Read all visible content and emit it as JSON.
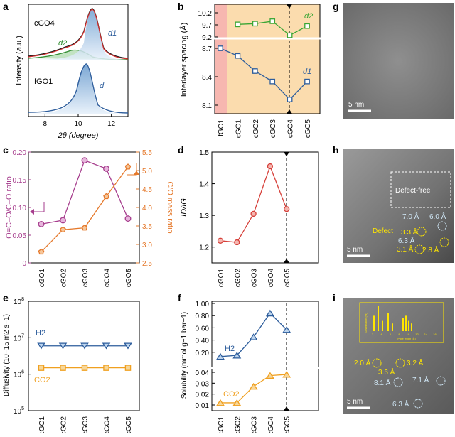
{
  "chart_data": [
    {
      "id": "a",
      "type": "line",
      "panel_label": "a",
      "xlabel": "2θ (degree)",
      "ylabel": "Intensity (a.u.)",
      "xlim": [
        7,
        13
      ],
      "xticks": [
        "8",
        "10",
        "12"
      ],
      "samples": [
        {
          "name": "cGO4",
          "peaks": [
            {
              "label": "d2",
              "center": 9.6
            },
            {
              "label": "d1",
              "center": 10.8
            }
          ]
        },
        {
          "name": "fGO1",
          "peaks": [
            {
              "label": "d",
              "center": 10.1
            }
          ]
        }
      ]
    },
    {
      "id": "b",
      "type": "line",
      "panel_label": "b",
      "ylabel": "Interlayer spacing (Å)",
      "categories": [
        "fGO1",
        "cGO1",
        "cGO2",
        "cGO3",
        "cGO4",
        "cGO5"
      ],
      "yticks_top": [
        "9.2",
        "9.7",
        "10.2"
      ],
      "yticks_bottom": [
        "8.1",
        "8.4",
        "8.7"
      ],
      "series": [
        {
          "name": "d2",
          "color": "#3aa635",
          "values": [
            null,
            9.72,
            9.75,
            9.85,
            9.27,
            9.65
          ]
        },
        {
          "name": "d1",
          "color": "#2d5d9c",
          "values": [
            8.7,
            8.62,
            8.46,
            8.35,
            8.16,
            8.35
          ]
        }
      ]
    },
    {
      "id": "c",
      "type": "line",
      "panel_label": "c",
      "categories": [
        "cGO1",
        "cGO2",
        "cGO3",
        "cGO4",
        "cGO5"
      ],
      "ylabel_left": "O=C–O/C–O ratio",
      "ylabel_right": "C/O mass ratio",
      "ylim_left": [
        0,
        0.2
      ],
      "ylim_right": [
        2.5,
        5.5
      ],
      "yticks_left": [
        "0",
        "0.05",
        "0.10",
        "0.15",
        "0.20"
      ],
      "yticks_right": [
        "2.5",
        "3.0",
        "3.5",
        "4.0",
        "4.5",
        "5.0",
        "5.5"
      ],
      "series": [
        {
          "name": "O=C–O/C–O ratio",
          "axis": "left",
          "color": "#a63d8d",
          "values": [
            0.07,
            0.077,
            0.185,
            0.17,
            0.08
          ]
        },
        {
          "name": "C/O mass ratio",
          "axis": "right",
          "color": "#e5782a",
          "values": [
            2.8,
            3.4,
            3.45,
            4.3,
            5.1
          ]
        }
      ]
    },
    {
      "id": "d",
      "type": "line",
      "panel_label": "d",
      "categories": [
        "cGO1",
        "cGO2",
        "cGO3",
        "cGO4",
        "cGO5"
      ],
      "ylabel": "ID/IG",
      "ylim": [
        1.15,
        1.5
      ],
      "yticks": [
        "1.2",
        "1.3",
        "1.4",
        "1.5"
      ],
      "series": [
        {
          "name": "ID/IG",
          "color": "#d6403a",
          "values": [
            1.22,
            1.215,
            1.305,
            1.455,
            1.32
          ]
        }
      ]
    },
    {
      "id": "e",
      "type": "line",
      "panel_label": "e",
      "categories": [
        "cGO1",
        "cGO2",
        "cGO3",
        "cGO4",
        "cGO5"
      ],
      "ylabel": "Diffusivity (10−15 m2 s−1)",
      "yticks": [
        "10^5",
        "10^6",
        "10^7",
        "10^8"
      ],
      "series": [
        {
          "name": "H2",
          "color": "#2d5d9c",
          "values": [
            6000000,
            6000000,
            6000000,
            6000000,
            6000000
          ]
        },
        {
          "name": "CO2",
          "color": "#f0a020",
          "values": [
            1500000,
            1500000,
            1500000,
            1500000,
            1500000
          ]
        }
      ]
    },
    {
      "id": "f",
      "type": "line",
      "panel_label": "f",
      "categories": [
        "cGO1",
        "cGO2",
        "cGO3",
        "cGO4",
        "cGO5"
      ],
      "ylabel": "Solubility (mmol g−1 bar−1)",
      "yticks_top": [
        "0.20",
        "0.40",
        "0.60",
        "0.80",
        "1.00"
      ],
      "yticks_bottom": [
        "0.01",
        "0.02",
        "0.03",
        "0.04"
      ],
      "series": [
        {
          "name": "H2",
          "color": "#2d5d9c",
          "values": [
            0.13,
            0.15,
            0.45,
            0.84,
            0.57
          ]
        },
        {
          "name": "CO2",
          "color": "#f0a020",
          "values": [
            0.012,
            0.012,
            0.027,
            0.037,
            0.038
          ]
        }
      ]
    }
  ],
  "images": {
    "g": {
      "panel_label": "g",
      "scale_bar": "5 nm"
    },
    "h": {
      "panel_label": "h",
      "scale_bar": "5 nm",
      "box_label": "Defect-free",
      "defect_label": "Defect",
      "white_labels": [
        "7.0 Å",
        "6.0 Å",
        "6.3 Å"
      ],
      "yellow_labels": [
        "3.3 Å",
        "3.1 Å",
        "2.8 Å"
      ]
    },
    "i": {
      "panel_label": "i",
      "scale_bar": "5 nm",
      "inset_xlabel": "Pore width (Å)",
      "inset_ylabel": "Distribution (%)",
      "inset_xticks": [
        "2",
        "4",
        "6",
        "8",
        "10",
        "12",
        "14",
        "16"
      ],
      "white_labels": [
        "8.1 Å",
        "7.1 Å",
        "6.3 Å"
      ],
      "yellow_labels": [
        "2.0 Å",
        "3.2 Å",
        "3.6 Å"
      ]
    }
  }
}
